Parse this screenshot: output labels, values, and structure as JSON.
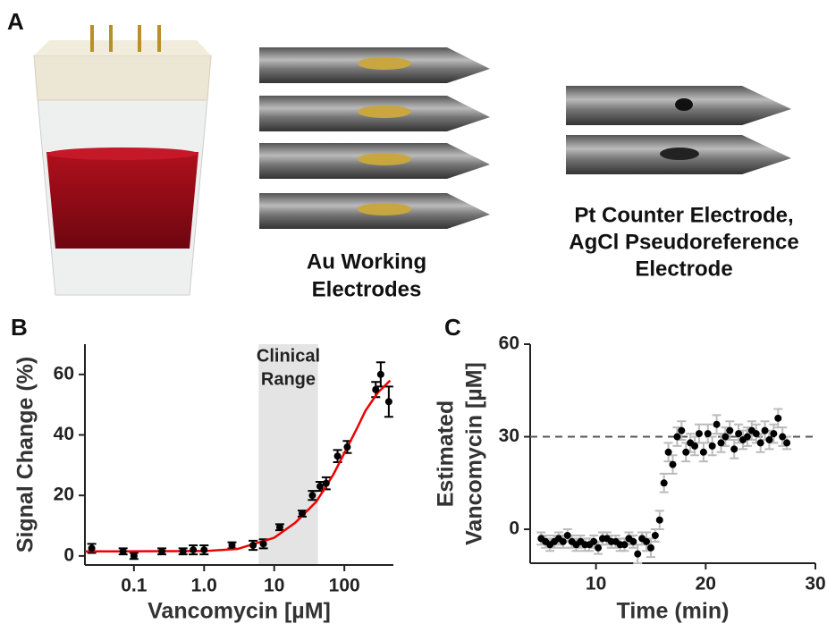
{
  "panels": {
    "a": {
      "label": "A",
      "working_caption": [
        "Au Working",
        "Electrodes"
      ],
      "counter_caption": [
        "Pt Counter Electrode,",
        "AgCl Pseudoreference",
        "Electrode"
      ]
    }
  },
  "chart_data": [
    {
      "type": "scatter",
      "panel_label": "B",
      "xlabel": "Vancomycin [µM]",
      "ylabel": "Signal Change (%)",
      "xlog": true,
      "xlim": [
        0.02,
        500
      ],
      "ylim": [
        -3,
        70
      ],
      "xticks": [
        0.1,
        {
          "value": 1,
          "label": "1.0"
        },
        10,
        100
      ],
      "yticks": [
        0,
        20,
        40,
        60
      ],
      "color": "#000000",
      "x": [
        0.025,
        0.07,
        0.1,
        0.25,
        0.5,
        0.7,
        1.0,
        2.5,
        5,
        7,
        12,
        25,
        35,
        45,
        55,
        80,
        110,
        280,
        330,
        430
      ],
      "values": [
        2.5,
        1.5,
        0,
        1.5,
        1.5,
        2,
        2,
        3.5,
        3.5,
        4,
        9.5,
        14,
        20,
        23,
        24,
        33,
        36,
        55,
        60,
        51
      ],
      "errors": [
        1.5,
        1,
        1,
        1,
        1,
        1.5,
        1.5,
        1,
        1.5,
        1.5,
        1,
        1,
        1.5,
        1.5,
        2,
        2,
        2,
        2.5,
        4,
        5
      ],
      "fit": {
        "color": "#ee0000",
        "x": [
          0.02,
          1,
          3,
          10,
          20,
          40,
          70,
          100,
          150,
          200,
          300,
          450
        ],
        "values": [
          1.5,
          1.6,
          2.3,
          6,
          11,
          18,
          27,
          34,
          42,
          48,
          54,
          58
        ]
      },
      "shade": [
        6,
        42
      ],
      "shade_label": [
        "Clinical",
        "Range"
      ]
    },
    {
      "type": "scatter",
      "panel_label": "C",
      "xlabel": "Time (min)",
      "ylabel": [
        "Estimated",
        "Vancomycin [µM]"
      ],
      "xlim": [
        4,
        30
      ],
      "ylim": [
        -11,
        60
      ],
      "xticks": [
        10,
        20,
        30
      ],
      "yticks": [
        0,
        30,
        60
      ],
      "color": "#000000",
      "error_color": "#bbbbbb",
      "ref_line": 30,
      "x": [
        5.0,
        5.4,
        5.8,
        6.2,
        6.6,
        7.0,
        7.4,
        7.8,
        8.2,
        8.6,
        9.0,
        9.4,
        9.8,
        10.2,
        10.6,
        11.0,
        11.4,
        11.8,
        12.2,
        12.6,
        13.0,
        13.4,
        13.8,
        14.2,
        14.6,
        15.0,
        15.4,
        15.8,
        16.2,
        16.6,
        17.0,
        17.4,
        17.8,
        18.2,
        18.6,
        19.0,
        19.4,
        19.8,
        20.2,
        20.6,
        21.0,
        21.4,
        21.8,
        22.2,
        22.6,
        23.0,
        23.4,
        23.8,
        24.2,
        24.6,
        25.0,
        25.4,
        25.8,
        26.2,
        26.6,
        27.0,
        27.4
      ],
      "values": [
        -3,
        -4,
        -5,
        -4,
        -3,
        -4,
        -2,
        -4,
        -5,
        -4,
        -5,
        -5,
        -4,
        -6,
        -3,
        -3,
        -4,
        -4,
        -5,
        -5,
        -3,
        -4,
        -8,
        -3,
        -4,
        -6,
        -2,
        3,
        15,
        25,
        21,
        30,
        32,
        25,
        28,
        27,
        31,
        25,
        31,
        27,
        34,
        28,
        30,
        32,
        26,
        31,
        29,
        30,
        32,
        31,
        28,
        32,
        29,
        31,
        36,
        30,
        28
      ],
      "errors": [
        2,
        2,
        2,
        2,
        2,
        2,
        2,
        2,
        2,
        2,
        2,
        2,
        2,
        2,
        2,
        2,
        2,
        2,
        2,
        2,
        2,
        2,
        3,
        2,
        3,
        3,
        2,
        3,
        3,
        3,
        3,
        3,
        3,
        3,
        3,
        3,
        3,
        3,
        3,
        3,
        3,
        3,
        3,
        3,
        3,
        3,
        3,
        3,
        3,
        3,
        3,
        3,
        3,
        3,
        3,
        3,
        2
      ]
    }
  ]
}
